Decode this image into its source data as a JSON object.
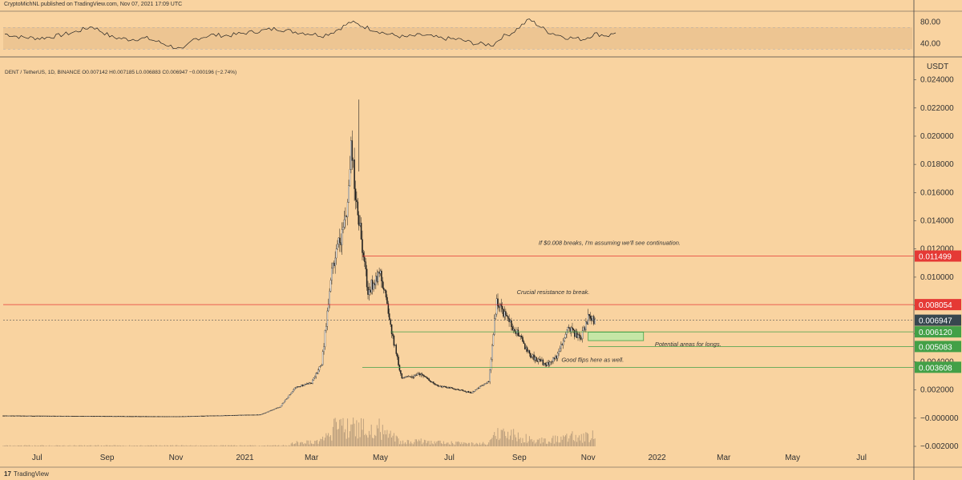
{
  "header": {
    "published": "CryptoMichNL published on TradingView.com, Nov 07, 2021 17:09 UTC",
    "symbol_line": "DENT / TetherUS, 1D, BINANCE  O0.007142  H0.007185  L0.006883  C0.006947  −0.000196 (−2.74%)"
  },
  "footer": {
    "logo_mark": "17",
    "brand": "TradingView"
  },
  "colors": {
    "background": "#f9d3a0",
    "candle": "#1e1e1e",
    "resistance": "#e53935",
    "support": "#43a047",
    "support_zone_fill": "#c5e6a6",
    "current_price_badge": "#37474f"
  },
  "chart_data": [
    {
      "type": "line",
      "ylim": [
        20,
        100
      ],
      "y_ticks": [
        "80.00",
        "40.00"
      ],
      "band": [
        30,
        70
      ],
      "x": [
        "2021-06-01",
        "2021-06-15",
        "2021-07-01",
        "2021-07-15",
        "2021-08-01",
        "2021-08-15",
        "2021-09-01",
        "2021-09-15",
        "2021-10-01",
        "2021-10-15",
        "2021-11-01",
        "2021-11-10",
        "2021-11-25",
        "2021-12-10",
        "2021-12-25",
        "2022-01-01",
        "2022-01-20",
        "2022-02-01",
        "2022-02-20",
        "2022-03-01",
        "2022-03-10",
        "2022-03-25",
        "2022-04-10",
        "2022-04-25",
        "2022-05-10",
        "2022-05-25",
        "2022-06-10",
        "2022-06-25",
        "2022-07-10",
        "2022-07-25",
        "2022-08-01",
        "2022-08-10",
        "2022-08-25",
        "2022-09-10",
        "2022-09-25",
        "2022-10-10",
        "2022-10-20",
        "2022-11-01",
        "2022-11-07"
      ],
      "values": [
        58,
        52,
        50,
        54,
        62,
        72,
        52,
        48,
        50,
        40,
        28,
        48,
        56,
        55,
        60,
        62,
        68,
        63,
        58,
        55,
        62,
        80,
        68,
        58,
        52,
        56,
        50,
        48,
        40,
        38,
        52,
        60,
        85,
        62,
        52,
        48,
        58,
        55,
        60
      ]
    },
    {
      "type": "candlestick",
      "title": "DENT / TetherUS, 1D, BINANCE",
      "ylabel": "USDT",
      "ylim": [
        -0.002,
        0.025
      ],
      "y_ticks": [
        "0.024000",
        "0.022000",
        "0.020000",
        "0.018000",
        "0.016000",
        "0.014000",
        "0.012000",
        "0.010000",
        "0.008000",
        "0.006000",
        "0.004000",
        "0.002000",
        "−0.000000",
        "−0.002000"
      ],
      "x_ticks": [
        "Jul",
        "Sep",
        "Nov",
        "2021",
        "Mar",
        "May",
        "Jul",
        "Sep",
        "Nov",
        "2022",
        "Mar",
        "May",
        "Jul"
      ],
      "x_tick_dates": [
        "2020-07-01",
        "2020-09-01",
        "2020-11-01",
        "2021-01-01",
        "2021-03-01",
        "2021-05-01",
        "2021-07-01",
        "2021-09-01",
        "2021-11-01",
        "2022-01-01",
        "2022-03-01",
        "2022-05-01",
        "2022-07-01"
      ],
      "x_range": [
        "2020-06-01",
        "2022-08-15"
      ],
      "price_path": {
        "dates": [
          "2020-06-01",
          "2020-11-01",
          "2021-01-15",
          "2021-02-01",
          "2021-02-15",
          "2021-03-01",
          "2021-03-10",
          "2021-03-20",
          "2021-04-01",
          "2021-04-05",
          "2021-04-12",
          "2021-04-20",
          "2021-05-01",
          "2021-05-10",
          "2021-05-20",
          "2021-06-05",
          "2021-06-20",
          "2021-07-05",
          "2021-07-20",
          "2021-08-05",
          "2021-08-12",
          "2021-08-20",
          "2021-09-01",
          "2021-09-10",
          "2021-09-25",
          "2021-10-05",
          "2021-10-15",
          "2021-10-25",
          "2021-11-01",
          "2021-11-07"
        ],
        "prices": [
          0.00017,
          0.00012,
          0.00025,
          0.0008,
          0.0022,
          0.0025,
          0.0038,
          0.011,
          0.014,
          0.019,
          0.014,
          0.009,
          0.0105,
          0.0065,
          0.0028,
          0.0032,
          0.0023,
          0.0021,
          0.0018,
          0.0026,
          0.0085,
          0.0072,
          0.0058,
          0.0045,
          0.0038,
          0.0045,
          0.0065,
          0.0056,
          0.0072,
          0.00695
        ]
      },
      "current_price": {
        "value": 0.006947,
        "label": "0.006947"
      },
      "levels": [
        {
          "kind": "resistance",
          "value": 0.011499,
          "label": "0.011499"
        },
        {
          "kind": "resistance",
          "value": 0.008054,
          "label": "0.008054"
        },
        {
          "kind": "support",
          "value": 0.00612,
          "label": "0.006120"
        },
        {
          "kind": "support",
          "value": 0.005083,
          "label": "0.005083"
        },
        {
          "kind": "support",
          "value": 0.003608,
          "label": "0.003608"
        }
      ],
      "support_zone": {
        "start": "2021-11-01",
        "end": "2021-12-20",
        "low": 0.0055,
        "high": 0.0061
      },
      "annotations": [
        {
          "text": "If $0.008 breaks, I'm assuming we'll see continuation.",
          "date": "2021-11-20",
          "price": 0.0123
        },
        {
          "text": "Crucial resistance to break.",
          "date": "2021-10-01",
          "price": 0.0088
        },
        {
          "text": "Potential areas for longs.",
          "date": "2021-12-30",
          "price": 0.0051
        },
        {
          "text": "Good flips here as well.",
          "date": "2021-11-05",
          "price": 0.004
        }
      ]
    }
  ]
}
